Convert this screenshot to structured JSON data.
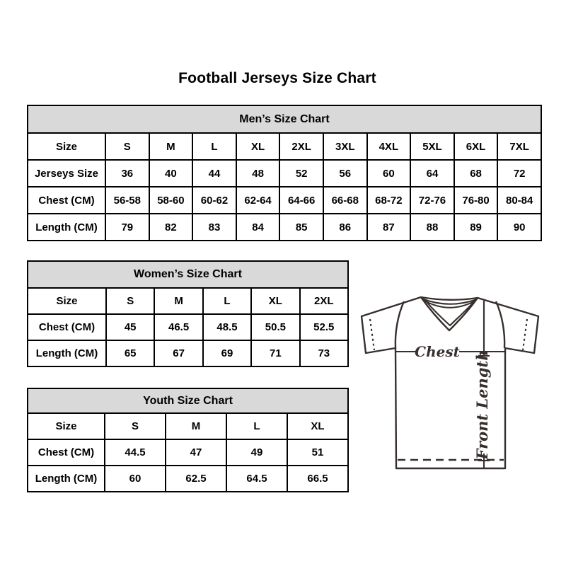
{
  "title": "Football Jerseys Size Chart",
  "colors": {
    "table_header_bg": "#d9d9d9",
    "table_border": "#000000",
    "jersey_line": "#362f2d",
    "text": "#000000"
  },
  "tables": [
    {
      "title": "Men’s Size Chart",
      "rows": [
        [
          "Size",
          "S",
          "M",
          "L",
          "XL",
          "2XL",
          "3XL",
          "4XL",
          "5XL",
          "6XL",
          "7XL"
        ],
        [
          "Jerseys Size",
          "36",
          "40",
          "44",
          "48",
          "52",
          "56",
          "60",
          "64",
          "68",
          "72"
        ],
        [
          "Chest (CM)",
          "56-58",
          "58-60",
          "60-62",
          "62-64",
          "64-66",
          "66-68",
          "68-72",
          "72-76",
          "76-80",
          "80-84"
        ],
        [
          "Length (CM)",
          "79",
          "82",
          "83",
          "84",
          "85",
          "86",
          "87",
          "88",
          "89",
          "90"
        ]
      ]
    },
    {
      "title": "Women’s Size Chart",
      "rows": [
        [
          "Size",
          "S",
          "M",
          "L",
          "XL",
          "2XL"
        ],
        [
          "Chest (CM)",
          "45",
          "46.5",
          "48.5",
          "50.5",
          "52.5"
        ],
        [
          "Length (CM)",
          "65",
          "67",
          "69",
          "71",
          "73"
        ]
      ]
    },
    {
      "title": "Youth Size Chart",
      "rows": [
        [
          "Size",
          "S",
          "M",
          "L",
          "XL"
        ],
        [
          "Chest (CM)",
          "44.5",
          "47",
          "49",
          "51"
        ],
        [
          "Length (CM)",
          "60",
          "62.5",
          "64.5",
          "66.5"
        ]
      ]
    }
  ],
  "diagram": {
    "chest_label": "Chest",
    "front_length_label": "Front Length"
  }
}
